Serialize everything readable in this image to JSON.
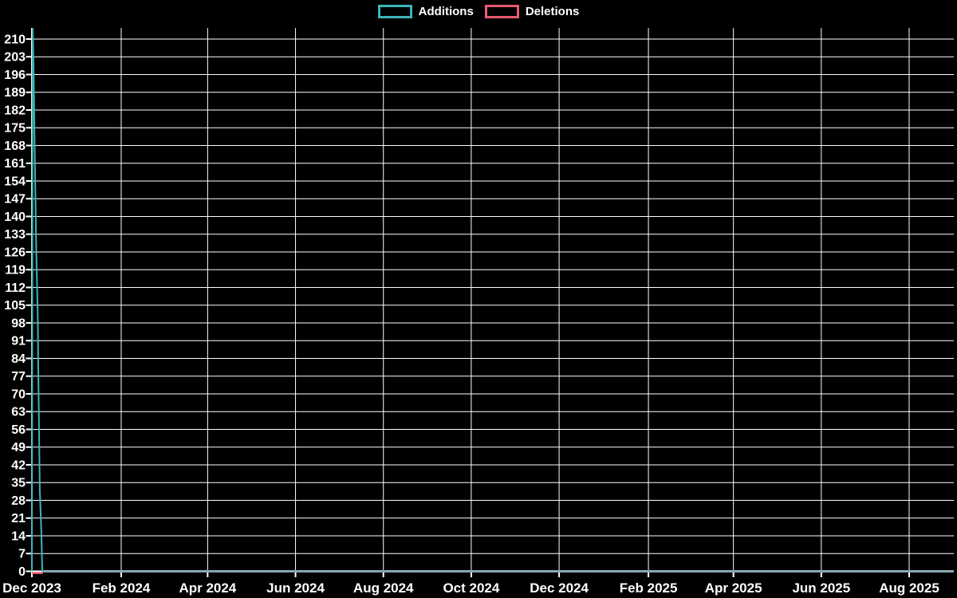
{
  "chart_data": {
    "type": "line",
    "title": "",
    "xlabel": "",
    "ylabel": "",
    "background_color": "#000000",
    "grid_color": "#ffffff",
    "text_color": "#ffffff",
    "legend": {
      "position": "top-center"
    },
    "x_axis": {
      "start_date": "2023-12-01",
      "end_day_offset": 640,
      "ticks": [
        {
          "label": "Dec 2023",
          "day": 0
        },
        {
          "label": "Feb 2024",
          "day": 62
        },
        {
          "label": "Apr 2024",
          "day": 122
        },
        {
          "label": "Jun 2024",
          "day": 183
        },
        {
          "label": "Aug 2024",
          "day": 244
        },
        {
          "label": "Oct 2024",
          "day": 305
        },
        {
          "label": "Dec 2024",
          "day": 366
        },
        {
          "label": "Feb 2025",
          "day": 428
        },
        {
          "label": "Apr 2025",
          "day": 487
        },
        {
          "label": "Jun 2025",
          "day": 548
        },
        {
          "label": "Aug 2025",
          "day": 609
        }
      ]
    },
    "y_axis": {
      "ylim": [
        0,
        214.4
      ],
      "ticks": [
        0,
        7,
        14,
        21,
        28,
        35,
        42,
        49,
        56,
        63,
        70,
        77,
        84,
        91,
        98,
        105,
        112,
        119,
        126,
        133,
        140,
        147,
        154,
        161,
        168,
        175,
        182,
        189,
        196,
        203,
        210
      ]
    },
    "series": [
      {
        "name": "Additions",
        "color": "#3cb4b8",
        "points": [
          [
            0,
            0
          ],
          [
            0.55,
            214
          ],
          [
            1.1,
            201
          ],
          [
            2,
            165
          ],
          [
            3,
            128
          ],
          [
            4.1,
            100
          ],
          [
            4.4,
            82
          ],
          [
            5,
            55
          ],
          [
            5.5,
            32
          ],
          [
            6.6,
            15
          ],
          [
            7.2,
            0
          ],
          [
            640,
            0
          ]
        ]
      },
      {
        "name": "Deletions",
        "color": "#e85a71",
        "points": [
          [
            0,
            0
          ],
          [
            640,
            0
          ]
        ]
      }
    ],
    "overlap_line": {
      "from_day": 7.2,
      "to_day": 640,
      "value": 0,
      "color": "#8ba6b2"
    }
  }
}
